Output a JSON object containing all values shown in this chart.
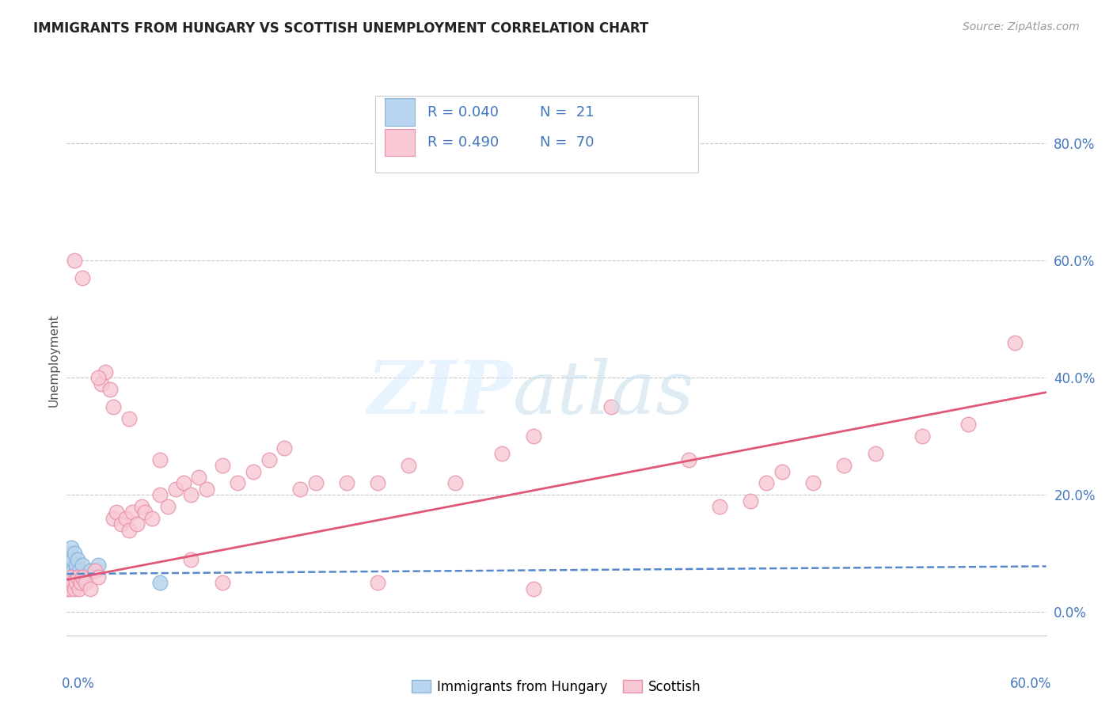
{
  "title": "IMMIGRANTS FROM HUNGARY VS SCOTTISH UNEMPLOYMENT CORRELATION CHART",
  "source": "Source: ZipAtlas.com",
  "ylabel": "Unemployment",
  "right_yticks": [
    "80.0%",
    "60.0%",
    "40.0%",
    "20.0%",
    "0.0%"
  ],
  "right_ytick_vals": [
    0.8,
    0.6,
    0.4,
    0.2,
    0.0
  ],
  "bottom_legend": [
    "Immigrants from Hungary",
    "Scottish"
  ],
  "xlim": [
    0.0,
    0.63
  ],
  "ylim": [
    -0.04,
    0.9
  ],
  "background_color": "#ffffff",
  "grid_color": "#c8c8c8",
  "blue_scatter_x": [
    0.0,
    0.001,
    0.001,
    0.002,
    0.002,
    0.003,
    0.003,
    0.004,
    0.004,
    0.005,
    0.005,
    0.006,
    0.006,
    0.007,
    0.007,
    0.008,
    0.01,
    0.012,
    0.015,
    0.02,
    0.06
  ],
  "blue_scatter_y": [
    0.05,
    0.07,
    0.09,
    0.06,
    0.1,
    0.08,
    0.11,
    0.07,
    0.09,
    0.06,
    0.1,
    0.07,
    0.08,
    0.06,
    0.09,
    0.07,
    0.08,
    0.06,
    0.07,
    0.08,
    0.05
  ],
  "pink_scatter_x": [
    0.0,
    0.001,
    0.002,
    0.003,
    0.004,
    0.005,
    0.006,
    0.007,
    0.008,
    0.009,
    0.01,
    0.012,
    0.015,
    0.018,
    0.02,
    0.022,
    0.025,
    0.028,
    0.03,
    0.032,
    0.035,
    0.038,
    0.04,
    0.042,
    0.045,
    0.048,
    0.05,
    0.055,
    0.06,
    0.065,
    0.07,
    0.075,
    0.08,
    0.085,
    0.09,
    0.1,
    0.11,
    0.12,
    0.13,
    0.14,
    0.15,
    0.16,
    0.18,
    0.2,
    0.22,
    0.25,
    0.28,
    0.3,
    0.35,
    0.4,
    0.42,
    0.44,
    0.45,
    0.46,
    0.48,
    0.5,
    0.52,
    0.55,
    0.58,
    0.61,
    0.005,
    0.01,
    0.02,
    0.03,
    0.04,
    0.06,
    0.08,
    0.1,
    0.2,
    0.3
  ],
  "pink_scatter_y": [
    0.04,
    0.05,
    0.04,
    0.06,
    0.05,
    0.04,
    0.05,
    0.06,
    0.04,
    0.05,
    0.06,
    0.05,
    0.04,
    0.07,
    0.06,
    0.39,
    0.41,
    0.38,
    0.16,
    0.17,
    0.15,
    0.16,
    0.14,
    0.17,
    0.15,
    0.18,
    0.17,
    0.16,
    0.2,
    0.18,
    0.21,
    0.22,
    0.2,
    0.23,
    0.21,
    0.25,
    0.22,
    0.24,
    0.26,
    0.28,
    0.21,
    0.22,
    0.22,
    0.22,
    0.25,
    0.22,
    0.27,
    0.3,
    0.35,
    0.26,
    0.18,
    0.19,
    0.22,
    0.24,
    0.22,
    0.25,
    0.27,
    0.3,
    0.32,
    0.46,
    0.6,
    0.57,
    0.4,
    0.35,
    0.33,
    0.26,
    0.09,
    0.05,
    0.05,
    0.04
  ],
  "blue_trend_x": [
    0.0,
    0.63
  ],
  "blue_trend_y": [
    0.065,
    0.078
  ],
  "pink_trend_x": [
    0.0,
    0.63
  ],
  "pink_trend_y": [
    0.055,
    0.375
  ],
  "legend_r1": "R = 0.040",
  "legend_n1": "N =  21",
  "legend_r2": "R = 0.490",
  "legend_n2": "N =  70",
  "legend_color": "#4477bb",
  "legend_face1": "#b8d4ee",
  "legend_edge1": "#8ab4d8",
  "legend_face2": "#f8c8d4",
  "legend_edge2": "#e890a8",
  "scatter_size": 180,
  "title_fontsize": 12,
  "source_fontsize": 10,
  "tick_color": "#4477bb",
  "ylabel_color": "#555555",
  "watermark_zip_color": "#ddeeff",
  "watermark_atlas_color": "#cce0ee"
}
